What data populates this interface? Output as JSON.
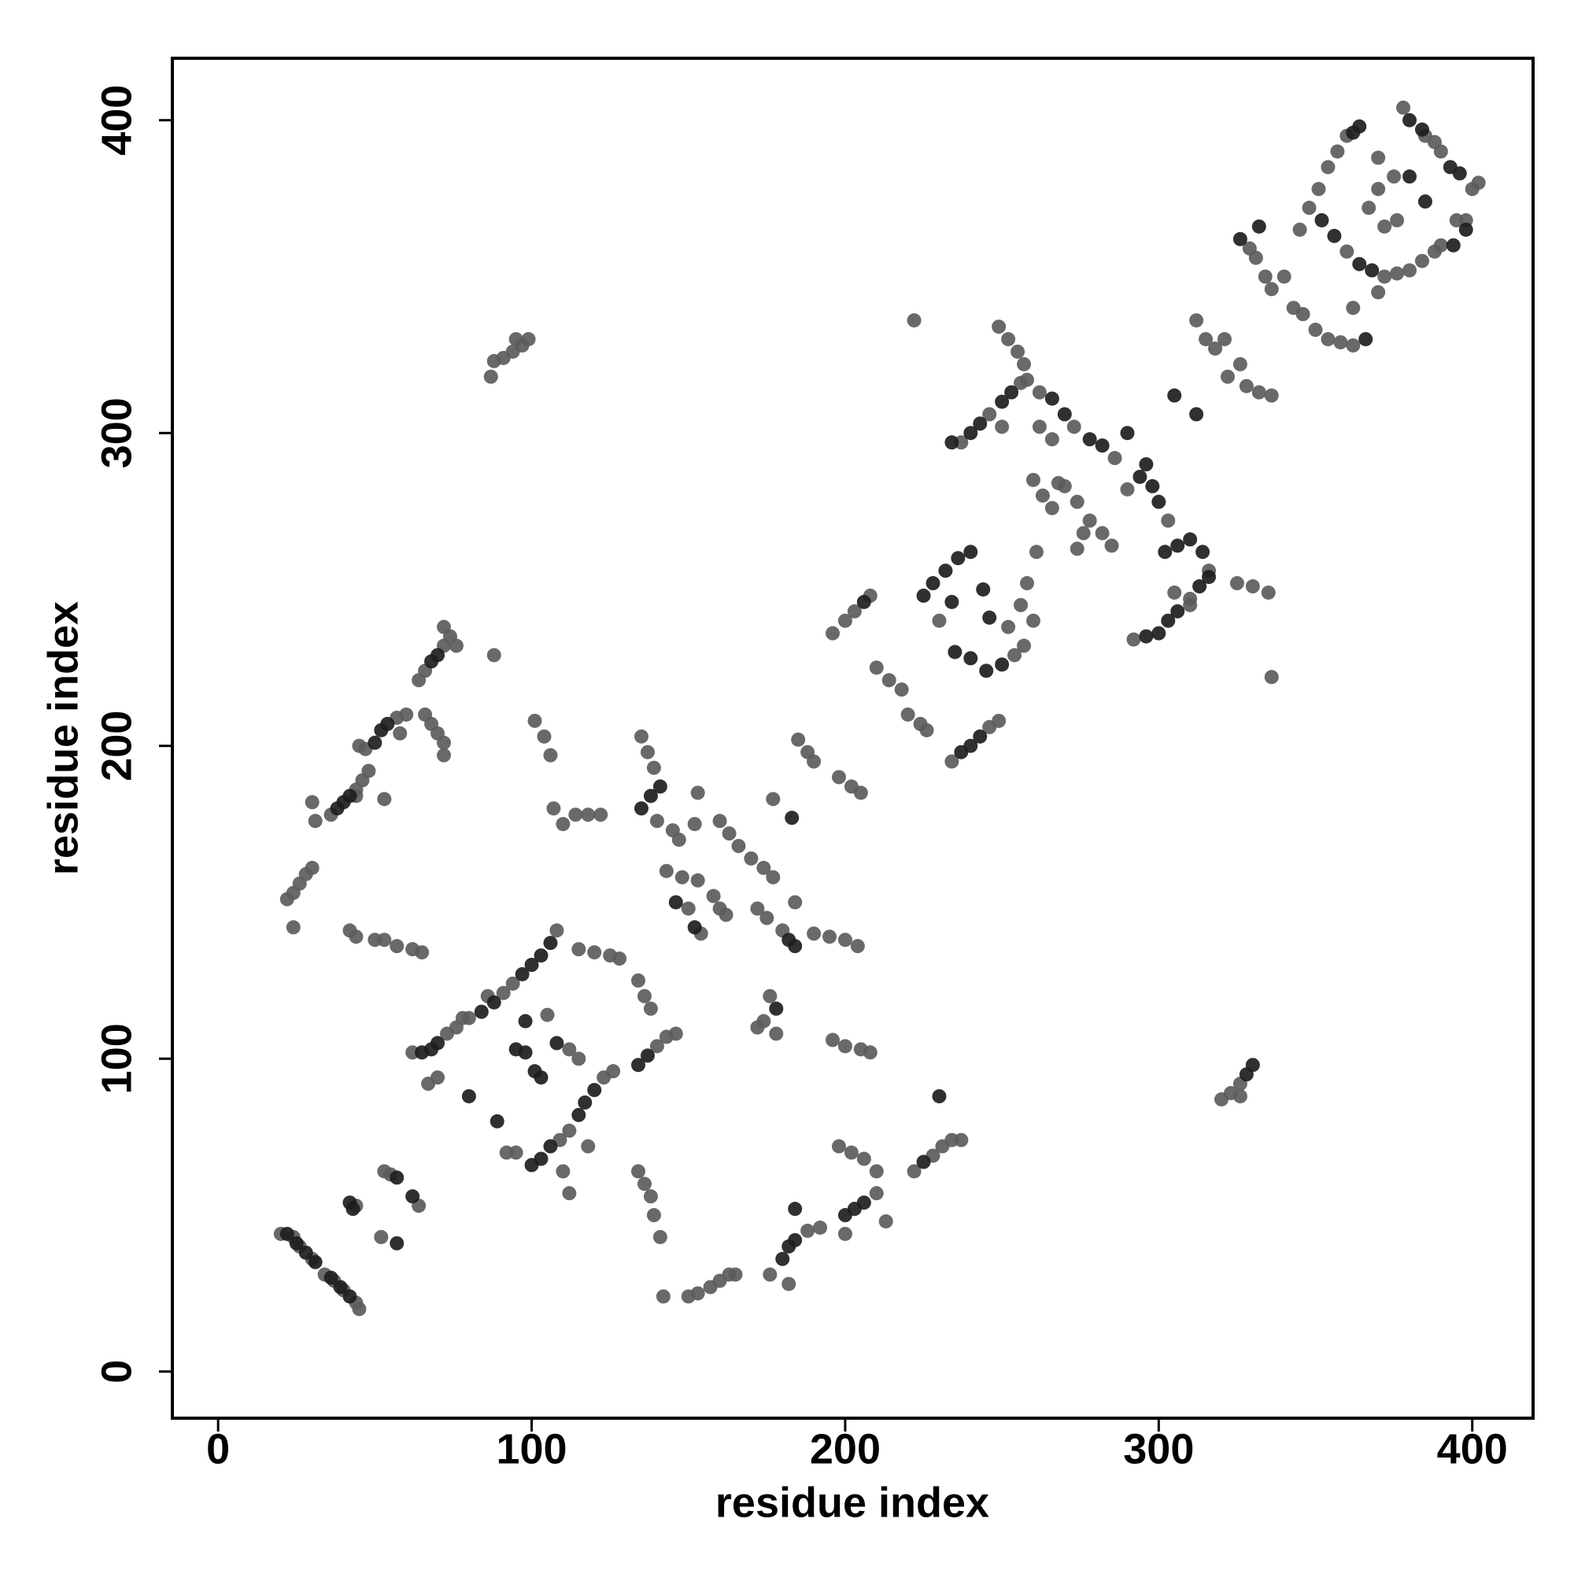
{
  "chart_data": {
    "type": "scatter",
    "x_label": "residue index",
    "y_label": "residue index",
    "xlim": [
      -14.6,
      419.4
    ],
    "ylim": [
      -14.9,
      419.8
    ],
    "xticks": [
      0,
      100,
      200,
      300,
      400
    ],
    "yticks": [
      0,
      100,
      200,
      300,
      400
    ],
    "series": [
      {
        "color": "#5c5c5c",
        "x": [
          20,
          24,
          26,
          30,
          34,
          37,
          40,
          44,
          45,
          53,
          55,
          64,
          52,
          44,
          22,
          24,
          26,
          28,
          30,
          24,
          30,
          31,
          36,
          44,
          46,
          48,
          45,
          47,
          44,
          57,
          60,
          58,
          53,
          64,
          66,
          72,
          74,
          76,
          72,
          66,
          68,
          70,
          72,
          72,
          88,
          87,
          88,
          91,
          94,
          97,
          99,
          95,
          42,
          44,
          50,
          53,
          57,
          62,
          65,
          62,
          73,
          76,
          80,
          91,
          94,
          108,
          95,
          109,
          112,
          123,
          126,
          140,
          143,
          146,
          115,
          120,
          125,
          128,
          134,
          136,
          138,
          112,
          115,
          105,
          67,
          70,
          112,
          110,
          118,
          78,
          86,
          92,
          101,
          104,
          106,
          107,
          110,
          114,
          118,
          122,
          135,
          137,
          139,
          140,
          145,
          147,
          150,
          143,
          148,
          153,
          153,
          152,
          154,
          158,
          160,
          162,
          160,
          163,
          166,
          170,
          174,
          177,
          172,
          175,
          180,
          176,
          174,
          172,
          178,
          184,
          177,
          185,
          188,
          190,
          198,
          202,
          205,
          190,
          195,
          200,
          204,
          196,
          200,
          205,
          208,
          134,
          136,
          138,
          139,
          141,
          142,
          150,
          153,
          157,
          160,
          163,
          165,
          176,
          188,
          192,
          182,
          198,
          202,
          206,
          210,
          210,
          200,
          213,
          222,
          228,
          231,
          234,
          237,
          196,
          200,
          203,
          208,
          210,
          214,
          218,
          220,
          224,
          226,
          222,
          230,
          254,
          257,
          260,
          256,
          258,
          261,
          252,
          234,
          246,
          249,
          237,
          246,
          256,
          250,
          249,
          252,
          255,
          257,
          258,
          262,
          273,
          286,
          262,
          266,
          260,
          263,
          266,
          270,
          274,
          278,
          282,
          285,
          274,
          276,
          268,
          290,
          303,
          316,
          292,
          310,
          305,
          310,
          312,
          315,
          318,
          321,
          322,
          326,
          328,
          332,
          336,
          325,
          330,
          335,
          336,
          320,
          323,
          326,
          326,
          329,
          331,
          334,
          336,
          340,
          343,
          346,
          350,
          354,
          358,
          362,
          345,
          348,
          351,
          354,
          357,
          360,
          372,
          376,
          380,
          384,
          388,
          390,
          395,
          400,
          402,
          390,
          385,
          378,
          372,
          376,
          375,
          370,
          362,
          370,
          388,
          398,
          367,
          370,
          360
        ],
        "y": [
          44,
          43,
          40,
          36,
          31,
          29,
          26,
          22,
          20,
          64,
          63,
          53,
          43,
          53,
          151,
          153,
          156,
          159,
          161,
          142,
          182,
          176,
          178,
          186,
          189,
          192,
          200,
          199,
          184,
          209,
          210,
          204,
          183,
          221,
          224,
          232,
          235,
          232,
          238,
          210,
          207,
          204,
          201,
          197,
          229,
          318,
          323,
          324,
          326,
          328,
          330,
          330,
          141,
          139,
          138,
          138,
          136,
          135,
          134,
          102,
          108,
          110,
          113,
          121,
          124,
          141,
          70,
          74,
          77,
          94,
          96,
          104,
          107,
          108,
          135,
          134,
          133,
          132,
          125,
          120,
          116,
          103,
          100,
          114,
          92,
          94,
          57,
          64,
          72,
          113,
          120,
          70,
          208,
          203,
          197,
          180,
          175,
          178,
          178,
          178,
          203,
          198,
          193,
          176,
          173,
          170,
          148,
          160,
          158,
          157,
          185,
          175,
          140,
          152,
          148,
          146,
          176,
          172,
          168,
          164,
          161,
          158,
          148,
          145,
          141,
          120,
          112,
          110,
          108,
          150,
          183,
          202,
          198,
          195,
          190,
          187,
          185,
          140,
          139,
          138,
          136,
          106,
          104,
          103,
          102,
          64,
          60,
          56,
          50,
          43,
          24,
          24,
          25,
          27,
          29,
          31,
          31,
          31,
          45,
          46,
          28,
          72,
          70,
          68,
          64,
          57,
          44,
          48,
          64,
          69,
          72,
          74,
          74,
          236,
          240,
          243,
          248,
          225,
          221,
          218,
          210,
          207,
          205,
          336,
          240,
          229,
          232,
          240,
          245,
          252,
          262,
          238,
          195,
          206,
          208,
          297,
          306,
          316,
          302,
          334,
          330,
          326,
          322,
          317,
          313,
          302,
          292,
          302,
          298,
          285,
          280,
          276,
          283,
          278,
          272,
          268,
          264,
          263,
          268,
          284,
          282,
          272,
          256,
          234,
          247,
          249,
          245,
          336,
          330,
          327,
          330,
          318,
          322,
          315,
          313,
          312,
          252,
          251,
          249,
          222,
          87,
          89,
          92,
          88,
          359,
          356,
          350,
          346,
          350,
          340,
          338,
          333,
          330,
          329,
          328,
          365,
          372,
          378,
          385,
          390,
          395,
          350,
          351,
          352,
          355,
          358,
          360,
          368,
          378,
          380,
          390,
          395,
          404,
          366,
          368,
          382,
          378,
          340,
          345,
          393,
          368,
          372,
          388,
          358
        ]
      },
      {
        "color": "#1e1e1e",
        "x": [
          22,
          25,
          28,
          31,
          36,
          39,
          42,
          42,
          43,
          57,
          62,
          57,
          38,
          40,
          42,
          50,
          52,
          54,
          68,
          70,
          65,
          68,
          70,
          84,
          88,
          97,
          100,
          103,
          106,
          100,
          103,
          106,
          115,
          117,
          120,
          134,
          137,
          95,
          98,
          101,
          103,
          108,
          80,
          89,
          98,
          135,
          138,
          141,
          152,
          146,
          182,
          184,
          178,
          183,
          180,
          182,
          184,
          184,
          200,
          203,
          206,
          230,
          225,
          206,
          225,
          228,
          232,
          236,
          240,
          234,
          235,
          240,
          245,
          250,
          244,
          246,
          237,
          240,
          243,
          234,
          240,
          243,
          250,
          253,
          266,
          270,
          278,
          282,
          290,
          294,
          298,
          300,
          296,
          302,
          306,
          310,
          314,
          296,
          300,
          303,
          306,
          313,
          316,
          305,
          312,
          328,
          330,
          352,
          356,
          364,
          368,
          366,
          362,
          364,
          380,
          384,
          393,
          396,
          394,
          398,
          385,
          380,
          332,
          326
        ],
        "y": [
          44,
          41,
          38,
          35,
          30,
          27,
          24,
          54,
          52,
          62,
          56,
          41,
          180,
          182,
          184,
          201,
          205,
          207,
          227,
          229,
          102,
          103,
          105,
          115,
          118,
          127,
          130,
          133,
          137,
          66,
          68,
          72,
          82,
          86,
          90,
          98,
          101,
          103,
          102,
          96,
          94,
          105,
          88,
          80,
          112,
          180,
          184,
          187,
          142,
          150,
          138,
          136,
          116,
          177,
          36,
          40,
          42,
          52,
          50,
          52,
          54,
          88,
          67,
          246,
          248,
          252,
          256,
          260,
          262,
          246,
          230,
          228,
          224,
          226,
          250,
          241,
          198,
          200,
          203,
          297,
          300,
          303,
          310,
          313,
          311,
          306,
          298,
          296,
          300,
          286,
          283,
          278,
          290,
          262,
          264,
          266,
          262,
          235,
          236,
          240,
          243,
          251,
          254,
          312,
          306,
          95,
          98,
          368,
          363,
          354,
          352,
          330,
          396,
          398,
          400,
          397,
          385,
          383,
          360,
          365,
          374,
          382,
          366,
          362
        ]
      }
    ]
  }
}
